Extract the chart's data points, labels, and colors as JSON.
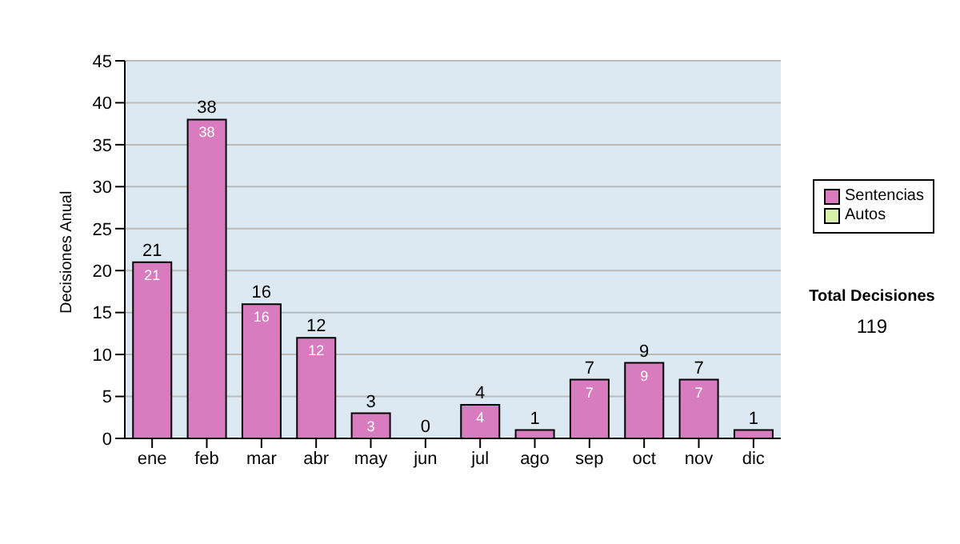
{
  "chart_data": {
    "type": "bar",
    "ylabel": "Decisiones Anual",
    "categories": [
      "ene",
      "feb",
      "mar",
      "abr",
      "may",
      "jun",
      "jul",
      "ago",
      "sep",
      "oct",
      "nov",
      "dic"
    ],
    "series": [
      {
        "name": "Sentencias",
        "color": "#d97bbf",
        "values": [
          21,
          38,
          16,
          12,
          3,
          0,
          4,
          1,
          7,
          9,
          7,
          1
        ],
        "value_labels": [
          "21",
          "38",
          "16",
          "12",
          "3",
          null,
          "4",
          null,
          "7",
          "9",
          "7",
          null
        ]
      },
      {
        "name": "Autos",
        "color": "#d8f0a8",
        "values": [
          0,
          0,
          0,
          0,
          0,
          0,
          0,
          0,
          0,
          0,
          0,
          0
        ]
      }
    ],
    "stacked": true,
    "totals": [
      "21",
      "38",
      "16",
      "12",
      "3",
      "0",
      "4",
      "1",
      "7",
      "9",
      "7",
      "1"
    ],
    "ylim": [
      0,
      45
    ],
    "yticks": [
      0,
      5,
      10,
      15,
      20,
      25,
      30,
      35,
      40,
      45
    ],
    "grid": "y",
    "legend": "right",
    "annotations": [
      "Total Decisiones",
      "119"
    ]
  }
}
